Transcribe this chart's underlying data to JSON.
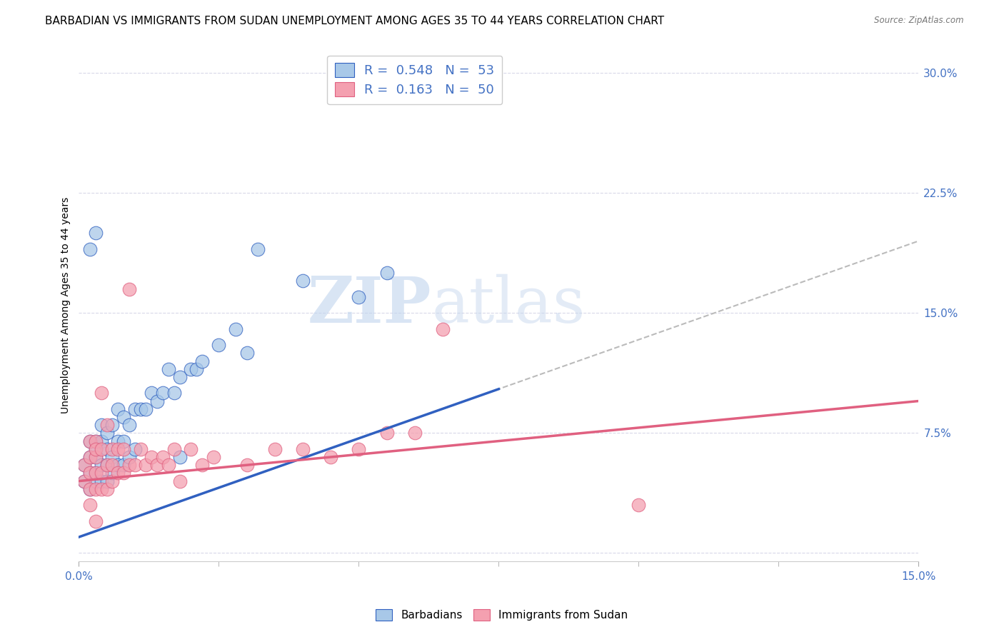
{
  "title": "BARBADIAN VS IMMIGRANTS FROM SUDAN UNEMPLOYMENT AMONG AGES 35 TO 44 YEARS CORRELATION CHART",
  "source": "Source: ZipAtlas.com",
  "ylabel": "Unemployment Among Ages 35 to 44 years",
  "xlim": [
    0.0,
    0.15
  ],
  "ylim": [
    -0.005,
    0.315
  ],
  "yticks": [
    0.0,
    0.075,
    0.15,
    0.225,
    0.3
  ],
  "yticklabels": [
    "",
    "7.5%",
    "15.0%",
    "22.5%",
    "30.0%"
  ],
  "blue_R": 0.548,
  "blue_N": 53,
  "pink_R": 0.163,
  "pink_N": 50,
  "blue_color": "#a8c8e8",
  "pink_color": "#f4a0b0",
  "blue_line_color": "#3060c0",
  "pink_line_color": "#e06080",
  "dash_line_color": "#bbbbbb",
  "grid_color": "#d8d8e8",
  "background_color": "#ffffff",
  "title_fontsize": 11,
  "axis_label_fontsize": 10,
  "tick_fontsize": 11,
  "legend_label_blue": "Barbadians",
  "legend_label_pink": "Immigrants from Sudan",
  "watermark_zip": "ZIP",
  "watermark_atlas": "atlas",
  "blue_line_x0": 0.0,
  "blue_line_y0": 0.01,
  "blue_line_x1": 0.15,
  "blue_line_y1": 0.195,
  "pink_line_x0": 0.0,
  "pink_line_y0": 0.045,
  "pink_line_x1": 0.15,
  "pink_line_y1": 0.095,
  "blue_scatter_x": [
    0.001,
    0.001,
    0.002,
    0.002,
    0.002,
    0.002,
    0.003,
    0.003,
    0.003,
    0.003,
    0.003,
    0.004,
    0.004,
    0.004,
    0.004,
    0.005,
    0.005,
    0.005,
    0.005,
    0.006,
    0.006,
    0.006,
    0.007,
    0.007,
    0.007,
    0.008,
    0.008,
    0.008,
    0.009,
    0.009,
    0.01,
    0.01,
    0.011,
    0.012,
    0.013,
    0.014,
    0.015,
    0.016,
    0.017,
    0.018,
    0.02,
    0.021,
    0.022,
    0.025,
    0.028,
    0.03,
    0.032,
    0.04,
    0.05,
    0.055,
    0.002,
    0.003,
    0.018
  ],
  "blue_scatter_y": [
    0.045,
    0.055,
    0.04,
    0.05,
    0.06,
    0.07,
    0.045,
    0.05,
    0.06,
    0.07,
    0.065,
    0.045,
    0.055,
    0.07,
    0.08,
    0.045,
    0.055,
    0.065,
    0.075,
    0.05,
    0.06,
    0.08,
    0.055,
    0.07,
    0.09,
    0.055,
    0.07,
    0.085,
    0.06,
    0.08,
    0.065,
    0.09,
    0.09,
    0.09,
    0.1,
    0.095,
    0.1,
    0.115,
    0.1,
    0.11,
    0.115,
    0.115,
    0.12,
    0.13,
    0.14,
    0.125,
    0.19,
    0.17,
    0.16,
    0.175,
    0.19,
    0.2,
    0.06
  ],
  "pink_scatter_x": [
    0.001,
    0.001,
    0.002,
    0.002,
    0.002,
    0.002,
    0.003,
    0.003,
    0.003,
    0.003,
    0.003,
    0.004,
    0.004,
    0.004,
    0.005,
    0.005,
    0.005,
    0.006,
    0.006,
    0.006,
    0.007,
    0.007,
    0.008,
    0.008,
    0.009,
    0.009,
    0.01,
    0.011,
    0.012,
    0.013,
    0.014,
    0.015,
    0.016,
    0.017,
    0.018,
    0.02,
    0.022,
    0.024,
    0.03,
    0.035,
    0.04,
    0.045,
    0.05,
    0.055,
    0.06,
    0.065,
    0.1,
    0.002,
    0.003,
    0.004
  ],
  "pink_scatter_y": [
    0.045,
    0.055,
    0.04,
    0.05,
    0.06,
    0.07,
    0.04,
    0.05,
    0.06,
    0.07,
    0.065,
    0.04,
    0.05,
    0.065,
    0.04,
    0.055,
    0.08,
    0.045,
    0.055,
    0.065,
    0.05,
    0.065,
    0.05,
    0.065,
    0.055,
    0.165,
    0.055,
    0.065,
    0.055,
    0.06,
    0.055,
    0.06,
    0.055,
    0.065,
    0.045,
    0.065,
    0.055,
    0.06,
    0.055,
    0.065,
    0.065,
    0.06,
    0.065,
    0.075,
    0.075,
    0.14,
    0.03,
    0.03,
    0.02,
    0.1
  ]
}
